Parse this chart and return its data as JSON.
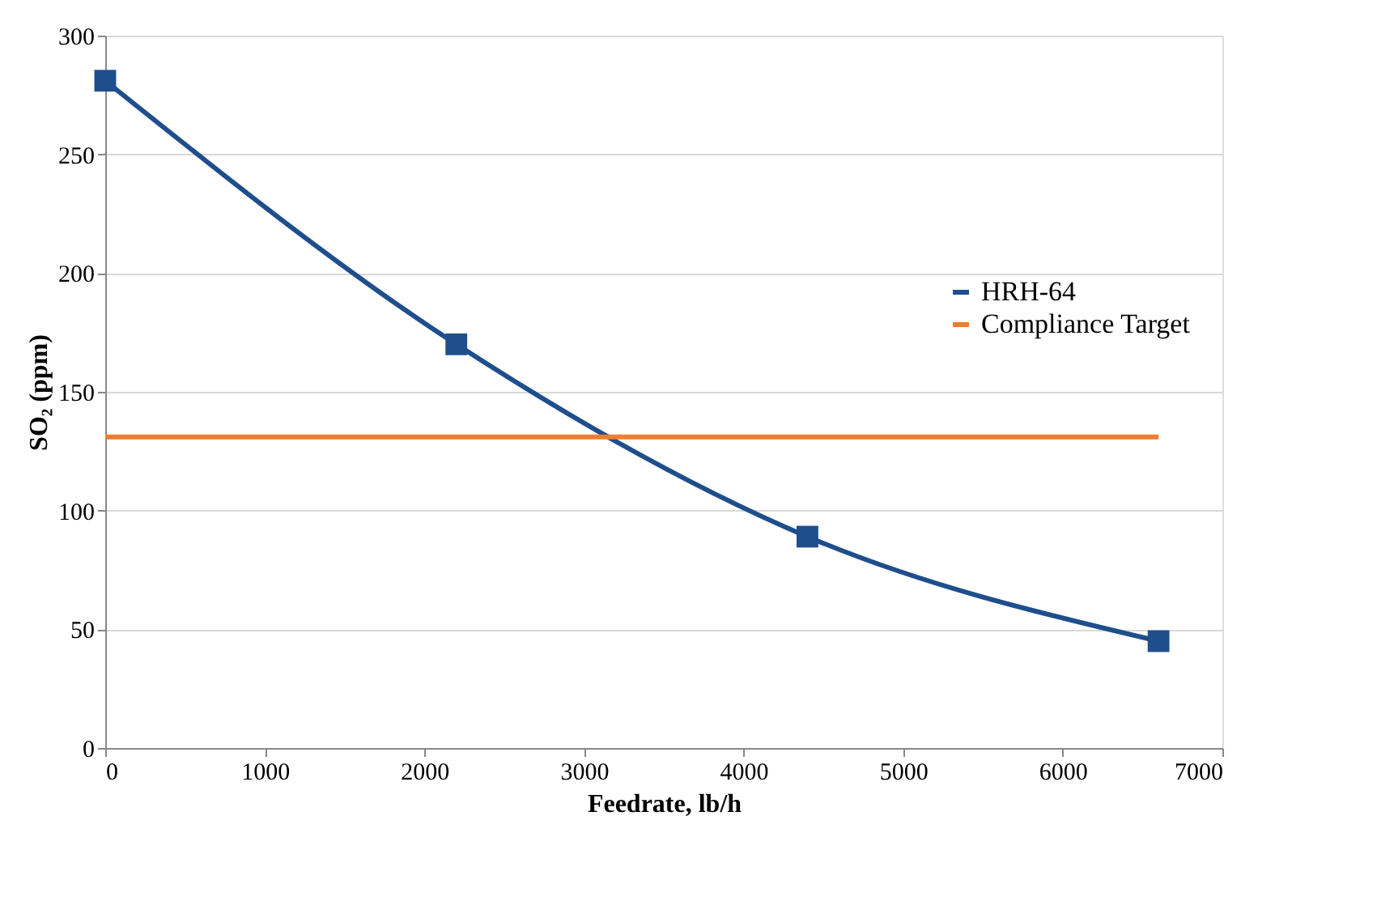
{
  "chart_data": {
    "type": "line",
    "xlabel": "Feedrate,  lb/h",
    "ylabel": "SO₂ (ppm)",
    "xlim": [
      0,
      7000
    ],
    "xticks": [
      0,
      1000,
      2000,
      3000,
      4000,
      5000,
      6000,
      7000
    ],
    "ylim": [
      0,
      300
    ],
    "yticks": [
      0,
      50,
      100,
      150,
      200,
      250,
      300
    ],
    "grid": "y",
    "legend": "right",
    "line_style": "solid",
    "series": [
      {
        "name": "HRH-64",
        "color": "#1f4e8c",
        "marker": "square",
        "x": [
          0,
          2200,
          4400,
          6600
        ],
        "values": [
          281,
          170,
          89,
          45
        ]
      },
      {
        "name": "Compliance Target",
        "color": "#ed7d31",
        "marker": "none",
        "x": [
          0,
          6600
        ],
        "values": [
          131,
          131
        ]
      }
    ]
  }
}
